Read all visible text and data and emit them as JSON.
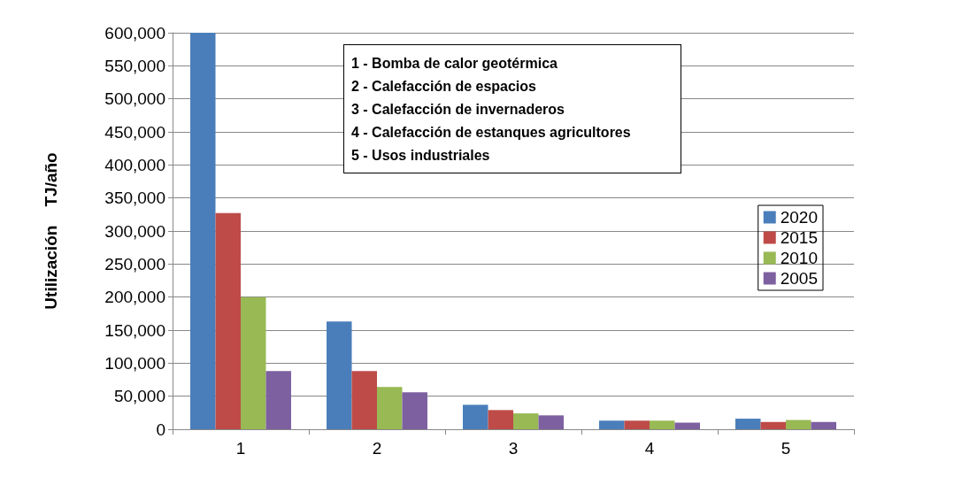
{
  "chart_data": {
    "type": "bar",
    "ylabel": "Utilización    TJ/año",
    "categories": [
      "1",
      "2",
      "3",
      "4",
      "5"
    ],
    "series": [
      {
        "name": "2020",
        "color": "#4a7ebb",
        "values": [
          600000,
          163000,
          37000,
          13000,
          16000
        ]
      },
      {
        "name": "2015",
        "color": "#be4b48",
        "values": [
          327000,
          88000,
          29000,
          13000,
          11000
        ]
      },
      {
        "name": "2010",
        "color": "#98b954",
        "values": [
          200000,
          64000,
          24000,
          13000,
          14000
        ]
      },
      {
        "name": "2005",
        "color": "#7d60a0",
        "values": [
          88000,
          56000,
          21000,
          10000,
          11000
        ]
      }
    ],
    "ylim": [
      0,
      600000
    ],
    "yticks": [
      {
        "value": 0,
        "label": "0"
      },
      {
        "value": 50000,
        "label": "50,000"
      },
      {
        "value": 100000,
        "label": "100,000"
      },
      {
        "value": 150000,
        "label": "150,000"
      },
      {
        "value": 200000,
        "label": "200,000"
      },
      {
        "value": 250000,
        "label": "250,000"
      },
      {
        "value": 300000,
        "label": "300,000"
      },
      {
        "value": 350000,
        "label": "350,000"
      },
      {
        "value": 400000,
        "label": "400,000"
      },
      {
        "value": 450000,
        "label": "450,000"
      },
      {
        "value": 500000,
        "label": "500,000"
      },
      {
        "value": 550000,
        "label": "550,000"
      },
      {
        "value": 600000,
        "label": "600,000"
      }
    ],
    "annotations": [
      "1 - Bomba de calor geotérmica",
      "2 - Calefacción de espacios",
      "3 - Calefacción de invernaderos",
      "4 - Calefacción de estanques agricultores",
      "5 - Usos industriales"
    ],
    "grid": "y",
    "legend": "right"
  }
}
